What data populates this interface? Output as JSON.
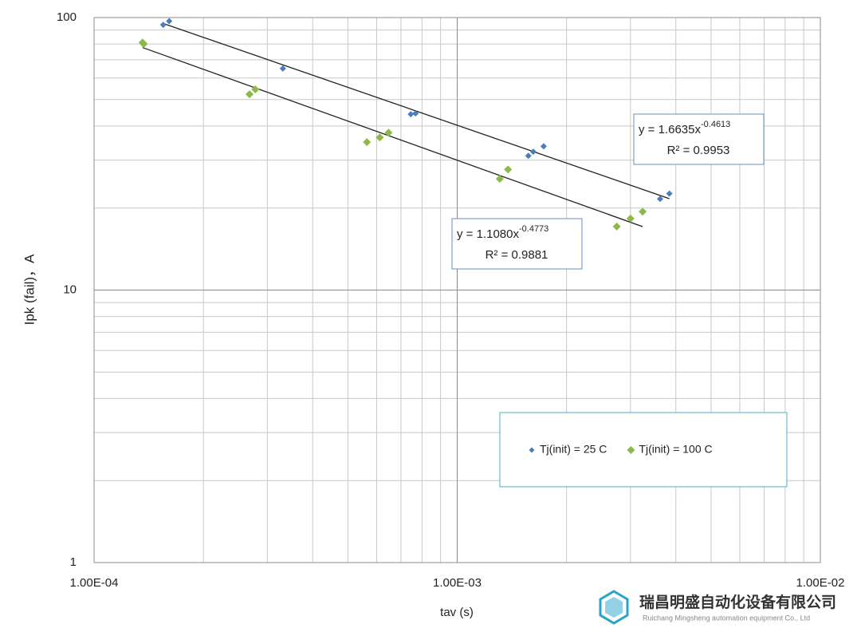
{
  "chart_data": {
    "type": "scatter",
    "x_label": "tav (s)",
    "y_label": "Ipk (fail)，A",
    "log_x": true,
    "log_y": true,
    "grid": true,
    "minor_grid": true,
    "xlim": [
      0.0001,
      0.01
    ],
    "ylim": [
      1,
      100
    ],
    "xticks": [
      {
        "value": 0.0001,
        "label": "1.00E-04"
      },
      {
        "value": 0.001,
        "label": "1.00E-03"
      },
      {
        "value": 0.01,
        "label": "1.00E-02"
      }
    ],
    "yticks": [
      1,
      10,
      100
    ],
    "legend": "lower right",
    "series": [
      {
        "name": "Tj(init) = 25 C",
        "color": "#4a7ebb",
        "x": [
          0.000155,
          0.000161,
          0.000331,
          0.000745,
          0.000768,
          0.00157,
          0.00162,
          0.00173,
          0.00362,
          0.00384
        ],
        "values": [
          94,
          97,
          65,
          44.2,
          44.5,
          31.1,
          32.2,
          33.7,
          21.6,
          22.6
        ],
        "trendline": {
          "coefficient": 1.6635,
          "exponent": -0.4613,
          "equation": "y = 1.6635x",
          "equation_exponent": "-0.4613",
          "r_squared_label": "R² = 0.9953"
        }
      },
      {
        "name": "Tj(init) = 100 C",
        "color": "#8cba48",
        "x": [
          0.000136,
          0.000137,
          0.000268,
          0.000278,
          0.000564,
          0.000612,
          0.000647,
          0.00131,
          0.00138,
          0.00275,
          0.003,
          0.00324
        ],
        "values": [
          81,
          80,
          52.3,
          54.5,
          34.9,
          36.3,
          37.8,
          25.6,
          27.7,
          17.1,
          18.3,
          19.4
        ],
        "trendline": {
          "coefficient": 1.108,
          "exponent": -0.4773,
          "equation": "y = 1.1080x",
          "equation_exponent": "-0.4773",
          "r_squared_label": "R² = 0.9881"
        }
      }
    ]
  },
  "watermark": {
    "company": "瑞昌明盛自动化设备有限公司",
    "company_en": "Ruichang Mingsheng automation equipment Co., Ltd"
  }
}
